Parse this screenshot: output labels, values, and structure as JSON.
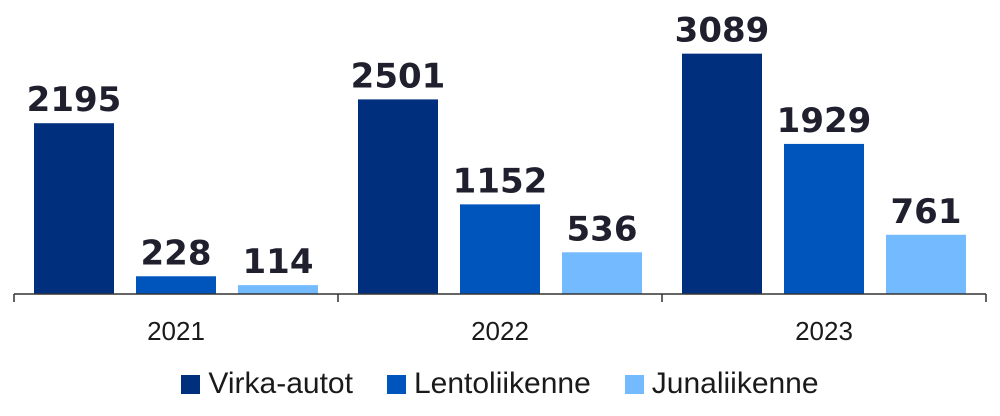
{
  "chart_data": {
    "type": "bar",
    "categories": [
      "2021",
      "2022",
      "2023"
    ],
    "series": [
      {
        "name": "Virka-autot",
        "color": "#002f7d",
        "values": [
          2195,
          2501,
          3089
        ]
      },
      {
        "name": "Lentoliikenne",
        "color": "#0055bd",
        "values": [
          228,
          1152,
          1929
        ]
      },
      {
        "name": "Junaliikenne",
        "color": "#74baff",
        "values": [
          114,
          536,
          761
        ]
      }
    ],
    "title": "",
    "xlabel": "",
    "ylabel": "",
    "ylim": [
      0,
      3650
    ],
    "grid": false,
    "legend_position": "bottom",
    "data_labels": true
  }
}
